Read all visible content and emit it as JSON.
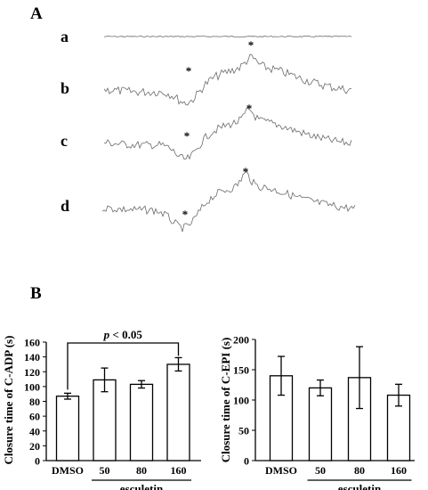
{
  "panel_a": {
    "label": "A",
    "traces": [
      {
        "label": "a",
        "star_count": 0
      },
      {
        "label": "b",
        "star_count": 2
      },
      {
        "label": "c",
        "star_count": 2
      },
      {
        "label": "d",
        "star_count": 2
      }
    ],
    "star_symbol": "*"
  },
  "panel_b": {
    "label": "B"
  },
  "chart_data": [
    {
      "type": "bar",
      "ylabel": "Closure time of C-ADP (s)",
      "categories": [
        "DMSO",
        "50",
        "80",
        "160"
      ],
      "values": [
        87,
        109,
        103,
        130
      ],
      "errors": [
        4,
        16,
        5,
        9
      ],
      "ylim": [
        0,
        160
      ],
      "yticks": [
        0,
        20,
        40,
        60,
        80,
        100,
        120,
        140,
        160
      ],
      "group_label": "esculetin",
      "group_categories": [
        "50",
        "80",
        "160"
      ],
      "annotation": {
        "text_p": "p",
        "text_rest": " < 0.05",
        "from": "DMSO",
        "to": "160"
      },
      "grid": false
    },
    {
      "type": "bar",
      "ylabel": "Closure time of C-EPI (s)",
      "categories": [
        "DMSO",
        "50",
        "80",
        "160"
      ],
      "values": [
        140,
        120,
        137,
        108
      ],
      "errors": [
        32,
        13,
        51,
        18
      ],
      "ylim": [
        0,
        200
      ],
      "yticks": [
        0,
        50,
        100,
        150,
        200
      ],
      "group_label": "esculetin",
      "group_categories": [
        "50",
        "80",
        "160"
      ],
      "grid": false
    }
  ]
}
